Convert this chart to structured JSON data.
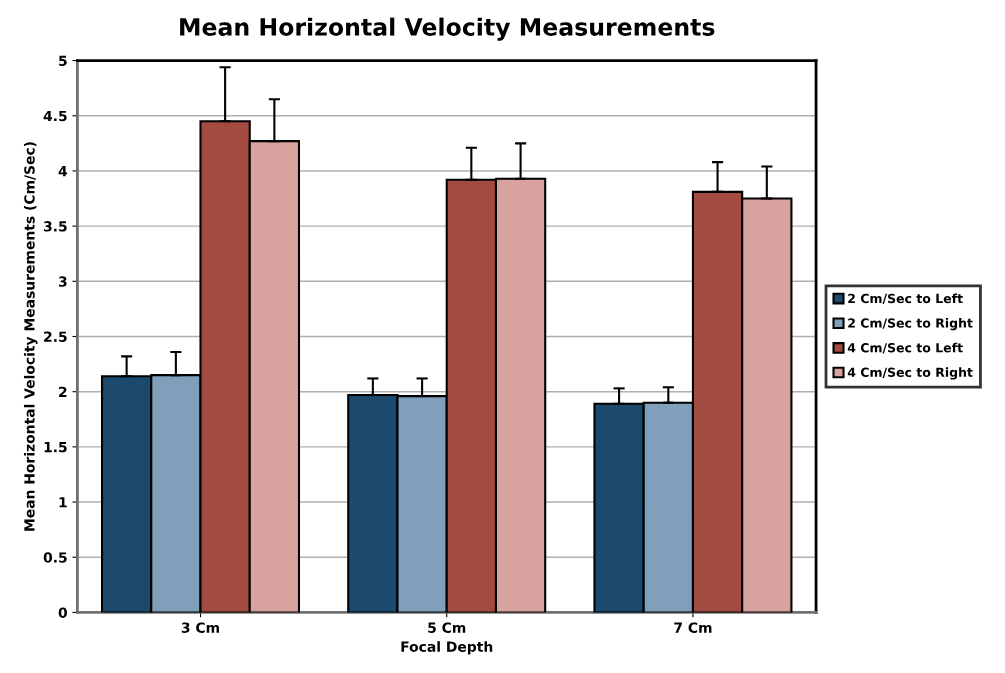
{
  "chart_data": {
    "type": "bar",
    "title": "Mean Horizontal Velocity Measurements",
    "xlabel": "Focal Depth",
    "ylabel": "Mean Horizontal Velocity Measurements (Cm/Sec)",
    "categories": [
      "3 Cm",
      "5 Cm",
      "7 Cm"
    ],
    "series": [
      {
        "name": "2 Cm/Sec to Left",
        "color": "#1b4a6e",
        "values": [
          2.14,
          1.97,
          1.89
        ],
        "errors": [
          [
            2.14,
            2.32
          ],
          [
            1.97,
            2.12
          ],
          [
            1.89,
            2.03
          ]
        ]
      },
      {
        "name": "2 Cm/Sec to Right",
        "color": "#7f9fbb",
        "values": [
          2.15,
          1.96,
          1.9
        ],
        "errors": [
          [
            2.15,
            2.36
          ],
          [
            1.96,
            2.12
          ],
          [
            1.9,
            2.04
          ]
        ]
      },
      {
        "name": "4 Cm/Sec to Left",
        "color": "#a34a41",
        "values": [
          4.45,
          3.92,
          3.81
        ],
        "errors": [
          [
            4.45,
            4.94
          ],
          [
            3.92,
            4.21
          ],
          [
            3.81,
            4.08
          ]
        ]
      },
      {
        "name": "4 Cm/Sec to Right",
        "color": "#d8a29e",
        "values": [
          4.27,
          3.93,
          3.75
        ],
        "errors": [
          [
            4.27,
            4.65
          ],
          [
            3.93,
            4.25
          ],
          [
            3.75,
            4.04
          ]
        ]
      }
    ],
    "ylim": [
      0,
      5
    ],
    "yticks": [
      0,
      0.5,
      1,
      1.5,
      2,
      2.5,
      3,
      3.5,
      4,
      4.5,
      5
    ],
    "grid": "y",
    "legend": "right"
  }
}
